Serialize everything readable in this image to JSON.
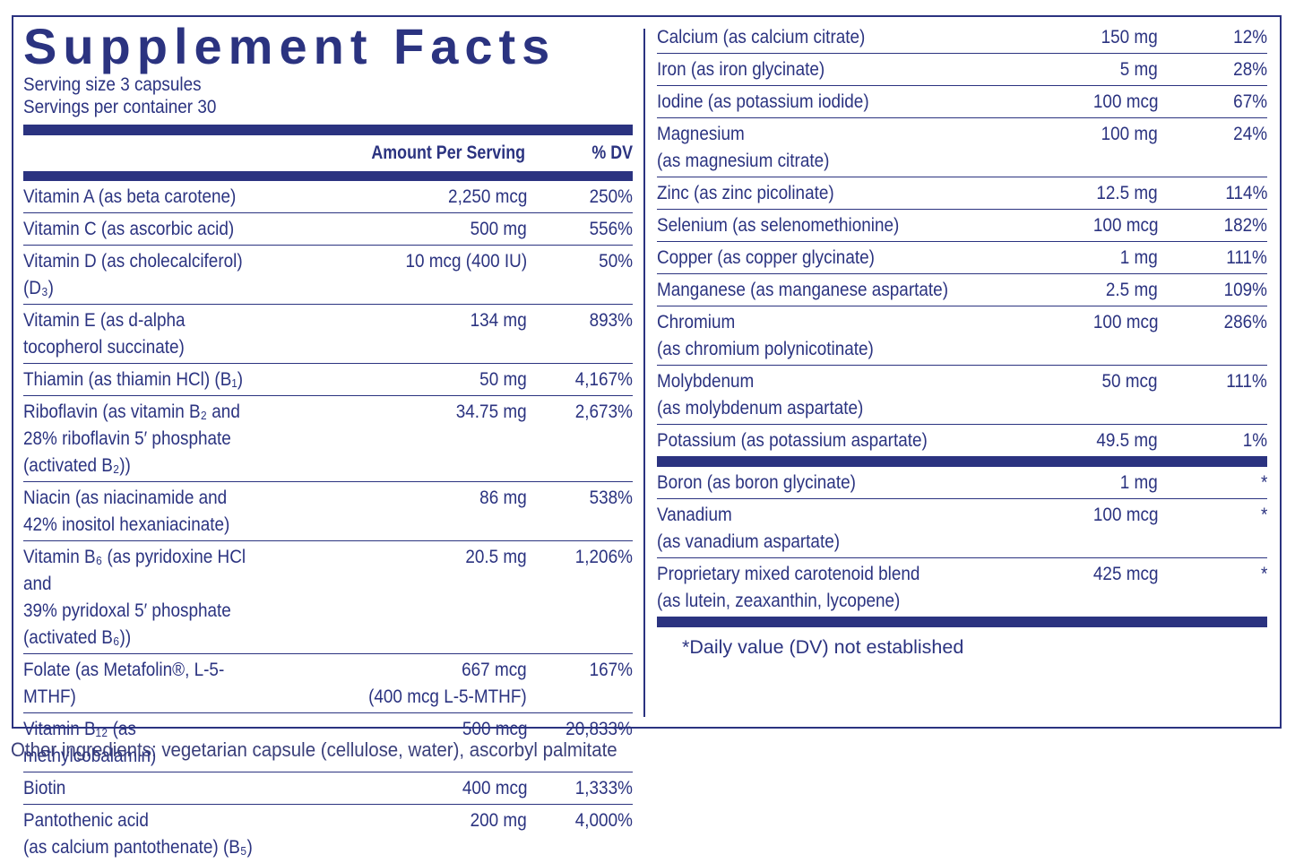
{
  "title": "Supplement Facts",
  "serving": {
    "size": "Serving size  3 capsules",
    "per_container": "Servings per container  30"
  },
  "header": {
    "amount_label": "Amount Per Serving",
    "dv_label": "% DV"
  },
  "left_rows": [
    {
      "name": "Vitamin A (as beta carotene)",
      "amount": "2,250 mcg",
      "dv": "250%"
    },
    {
      "name": "Vitamin C (as ascorbic acid)",
      "amount": "500 mg",
      "dv": "556%"
    },
    {
      "name": "Vitamin D  (as cholecalciferol) (D₃)",
      "amount": "10 mcg (400 IU)",
      "dv": "50%"
    },
    {
      "name": "Vitamin E (as d-alpha\ntocopherol succinate)",
      "amount": "134 mg",
      "dv": "893%"
    },
    {
      "name": "Thiamin (as thiamin HCl) (B₁)",
      "amount": "50 mg",
      "dv": "4,167%"
    },
    {
      "name": "Riboflavin (as vitamin B₂ and\n28% riboflavin 5′ phosphate (activated B₂))",
      "amount": "34.75 mg",
      "dv": "2,673%"
    },
    {
      "name": "Niacin (as niacinamide and\n42% inositol hexaniacinate)",
      "amount": "86 mg",
      "dv": "538%"
    },
    {
      "name": "Vitamin B₆ (as pyridoxine HCl and\n39% pyridoxal 5′ phosphate (activated B₆))",
      "amount": "20.5 mg",
      "dv": "1,206%"
    },
    {
      "name": "Folate (as Metafolin®, L-5-MTHF)",
      "amount": "667 mcg\n(400 mcg L-5-MTHF)",
      "dv": "167%"
    },
    {
      "name": "Vitamin B₁₂ (as methylcobalamin)",
      "amount": "500 mcg",
      "dv": "20,833%"
    },
    {
      "name": "Biotin",
      "amount": "400 mcg",
      "dv": "1,333%"
    },
    {
      "name": "Pantothenic acid\n(as calcium pantothenate) (B₅)",
      "amount": "200 mg",
      "dv": "4,000%"
    }
  ],
  "right_rows": [
    {
      "name": "Calcium (as calcium citrate)",
      "amount": "150 mg",
      "dv": "12%"
    },
    {
      "name": "Iron (as iron glycinate)",
      "amount": "5 mg",
      "dv": "28%"
    },
    {
      "name": "Iodine (as potassium iodide)",
      "amount": "100 mcg",
      "dv": "67%"
    },
    {
      "name": "Magnesium\n(as magnesium citrate)",
      "amount": "100 mg",
      "dv": "24%"
    },
    {
      "name": "Zinc (as zinc picolinate)",
      "amount": "12.5 mg",
      "dv": "114%"
    },
    {
      "name": "Selenium (as selenomethionine)",
      "amount": "100 mcg",
      "dv": "182%"
    },
    {
      "name": "Copper (as copper glycinate)",
      "amount": "1 mg",
      "dv": "111%"
    },
    {
      "name": "Manganese (as manganese aspartate)",
      "amount": "2.5 mg",
      "dv": "109%"
    },
    {
      "name": "Chromium\n(as chromium polynicotinate)",
      "amount": "100 mcg",
      "dv": "286%"
    },
    {
      "name": "Molybdenum\n(as molybdenum aspartate)",
      "amount": "50 mcg",
      "dv": "111%"
    },
    {
      "name": "Potassium (as potassium aspartate)",
      "amount": "49.5 mg",
      "dv": "1%"
    }
  ],
  "right_rows_no_dv": [
    {
      "name": "Boron (as boron glycinate)",
      "amount": "1 mg",
      "dv": "*"
    },
    {
      "name": "Vanadium\n(as vanadium aspartate)",
      "amount": "100 mcg",
      "dv": "*"
    },
    {
      "name": "Proprietary mixed carotenoid blend\n(as lutein, zeaxanthin, lycopene)",
      "amount": "425 mcg",
      "dv": "*"
    }
  ],
  "footnote": "*Daily value (DV) not established",
  "other_ingredients": "Other ingredients: vegetarian capsule (cellulose, water), ascorbyl palmitate",
  "colors": {
    "ink": "#2b3380",
    "background": "#ffffff"
  }
}
